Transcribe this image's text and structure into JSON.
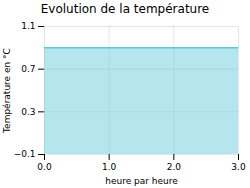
{
  "chart_data": {
    "type": "area",
    "title": "Evolution de la température",
    "xlabel": "heure par heure",
    "ylabel": "Température en °C",
    "x": [
      0,
      3
    ],
    "values": [
      0.9,
      0.9
    ],
    "color": "#5ac8d8",
    "xlim": [
      0,
      3
    ],
    "ylim": [
      -0.1,
      1.1
    ],
    "xticks": [
      0,
      1,
      2,
      3
    ],
    "yticks": [
      -0.1,
      0.3,
      0.7,
      1.1
    ],
    "grid": true
  }
}
